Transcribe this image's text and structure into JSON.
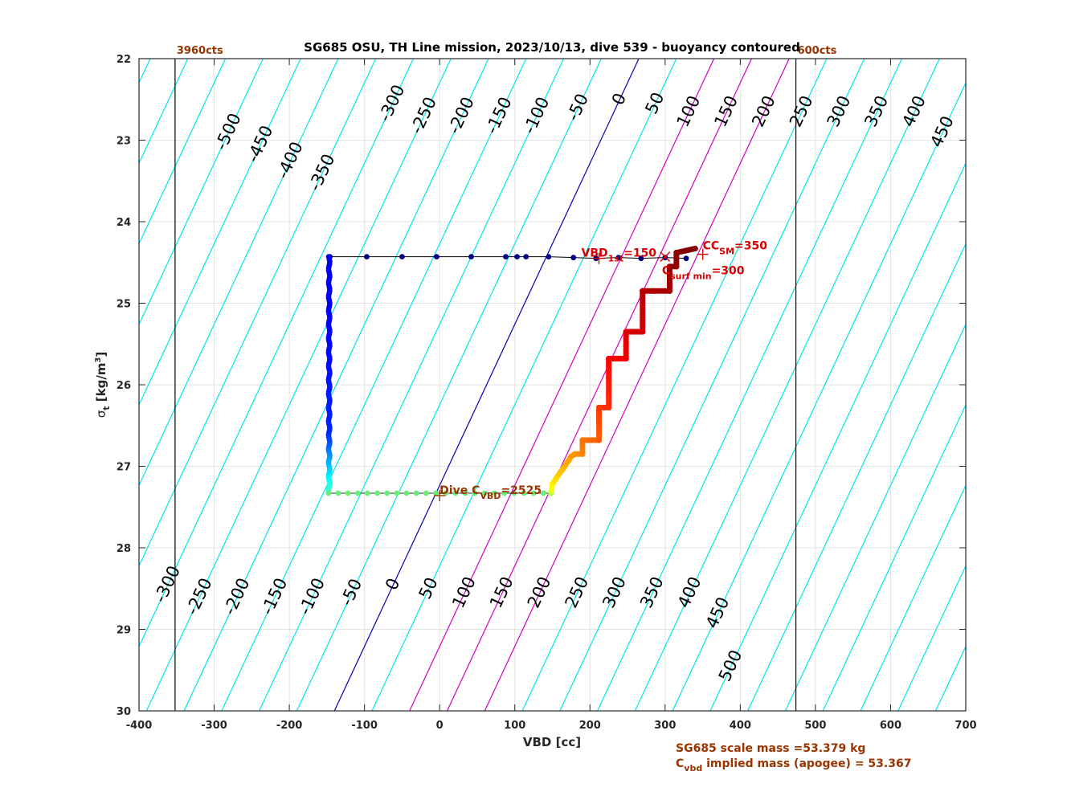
{
  "chart_data": {
    "type": "scatter",
    "title": "SG685 OSU, TH Line mission, 2023/10/13, dive 539 - buoyancy contoured",
    "xlabel": "VBD [cc]",
    "ylabel_main": "σ",
    "ylabel_sub": "t",
    "ylabel_rest": " [kg/m",
    "ylabel_sup": "3",
    "ylabel_end": "]",
    "xlim": [
      -400,
      700
    ],
    "ylim": [
      22,
      30
    ],
    "y_reversed": true,
    "grid": true,
    "x_ticks": [
      -400,
      -300,
      -200,
      -100,
      0,
      100,
      200,
      300,
      400,
      500,
      600,
      700
    ],
    "y_ticks": [
      22,
      23,
      24,
      25,
      26,
      27,
      28,
      29,
      30
    ],
    "x_tick_labels": [
      "-400",
      "-300",
      "-200",
      "-100",
      "0",
      "100",
      "200",
      "300",
      "400",
      "500",
      "600",
      "700"
    ],
    "y_tick_labels": [
      "22",
      "23",
      "24",
      "25",
      "26",
      "27",
      "28",
      "29",
      "30"
    ],
    "vbd_limits": [
      {
        "x": -352,
        "label": "3960cts"
      },
      {
        "x": 474,
        "label": "600cts"
      }
    ],
    "contours": {
      "x_at_sigma30_for_zero": -140,
      "x_at_sigma22_for_zero": 265,
      "cyan_levels": [
        -700,
        -650,
        -600,
        -550,
        -500,
        -450,
        -400,
        -350,
        -300,
        -250,
        -200,
        -150,
        -100,
        -50,
        50,
        250,
        300,
        350,
        400,
        450,
        500,
        550,
        600,
        650,
        700,
        750,
        800
      ],
      "zero_level": 0,
      "magenta_levels": [
        100,
        150,
        200
      ],
      "top_labels": [
        {
          "level": -500,
          "text": "-500",
          "sigma": 22.9
        },
        {
          "level": -450,
          "text": "-450",
          "sigma": 23.05
        },
        {
          "level": -400,
          "text": "-400",
          "sigma": 23.25
        },
        {
          "level": -350,
          "text": "-350",
          "sigma": 23.4
        },
        {
          "level": -300,
          "text": "-300",
          "sigma": 22.55
        },
        {
          "level": -250,
          "text": "-250",
          "sigma": 22.7
        },
        {
          "level": -200,
          "text": "-200",
          "sigma": 22.7
        },
        {
          "level": -150,
          "text": "-150",
          "sigma": 22.7
        },
        {
          "level": -100,
          "text": "-100",
          "sigma": 22.7
        },
        {
          "level": -50,
          "text": "-50",
          "sigma": 22.6
        },
        {
          "level": 0,
          "text": "0",
          "sigma": 22.5
        },
        {
          "level": 50,
          "text": "50",
          "sigma": 22.55
        },
        {
          "level": 100,
          "text": "100",
          "sigma": 22.65
        },
        {
          "level": 150,
          "text": "150",
          "sigma": 22.65
        },
        {
          "level": 200,
          "text": "200",
          "sigma": 22.65
        },
        {
          "level": 250,
          "text": "250",
          "sigma": 22.65
        },
        {
          "level": 300,
          "text": "300",
          "sigma": 22.65
        },
        {
          "level": 350,
          "text": "350",
          "sigma": 22.65
        },
        {
          "level": 400,
          "text": "400",
          "sigma": 22.65
        },
        {
          "level": 450,
          "text": "450",
          "sigma": 22.9
        }
      ],
      "bottom_labels": [
        {
          "level": -300,
          "text": "-300",
          "sigma": 28.45
        },
        {
          "level": -250,
          "text": "-250",
          "sigma": 28.6
        },
        {
          "level": -200,
          "text": "-200",
          "sigma": 28.6
        },
        {
          "level": -150,
          "text": "-150",
          "sigma": 28.6
        },
        {
          "level": -100,
          "text": "-100",
          "sigma": 28.6
        },
        {
          "level": -50,
          "text": "-50",
          "sigma": 28.55
        },
        {
          "level": 0,
          "text": "0",
          "sigma": 28.45
        },
        {
          "level": 50,
          "text": "50",
          "sigma": 28.5
        },
        {
          "level": 100,
          "text": "100",
          "sigma": 28.55
        },
        {
          "level": 150,
          "text": "150",
          "sigma": 28.55
        },
        {
          "level": 200,
          "text": "200",
          "sigma": 28.55
        },
        {
          "level": 250,
          "text": "250",
          "sigma": 28.55
        },
        {
          "level": 300,
          "text": "300",
          "sigma": 28.55
        },
        {
          "level": 350,
          "text": "350",
          "sigma": 28.55
        },
        {
          "level": 400,
          "text": "400",
          "sigma": 28.55
        },
        {
          "level": 450,
          "text": "450",
          "sigma": 28.8
        },
        {
          "level": 500,
          "text": "500",
          "sigma": 29.45
        }
      ]
    },
    "descent": {
      "color": "#000080",
      "surface_points": [
        {
          "x": 328,
          "y": 24.45
        },
        {
          "x": 300,
          "y": 24.44
        },
        {
          "x": 268,
          "y": 24.45
        },
        {
          "x": 238,
          "y": 24.44
        },
        {
          "x": 208,
          "y": 24.45
        },
        {
          "x": 178,
          "y": 24.44
        },
        {
          "x": 145,
          "y": 24.43
        },
        {
          "x": 115,
          "y": 24.43
        },
        {
          "x": 103,
          "y": 24.43
        },
        {
          "x": 88,
          "y": 24.43
        },
        {
          "x": 42,
          "y": 24.43
        },
        {
          "x": -4,
          "y": 24.43
        },
        {
          "x": -50,
          "y": 24.43
        },
        {
          "x": -97,
          "y": 24.43
        },
        {
          "x": -146,
          "y": 24.43
        }
      ],
      "column_x": -147,
      "column_sigma": [
        24.43,
        27.33
      ]
    },
    "bottom_path": {
      "color": "#66ee77",
      "x": [
        -148,
        -135,
        -122,
        -109,
        -96,
        -83,
        -70,
        -57,
        -44,
        -31,
        -18,
        -5,
        8,
        21,
        34,
        47,
        60,
        73,
        86,
        99,
        112,
        125,
        138,
        148
      ],
      "y": 27.33
    },
    "climb_path": [
      {
        "x": 148,
        "y": 27.33
      },
      {
        "x": 150,
        "y": 27.22
      },
      {
        "x": 155,
        "y": 27.15
      },
      {
        "x": 160,
        "y": 27.08
      },
      {
        "x": 165,
        "y": 27.02
      },
      {
        "x": 170,
        "y": 26.95
      },
      {
        "x": 175,
        "y": 26.88
      },
      {
        "x": 180,
        "y": 26.85
      },
      {
        "x": 190,
        "y": 26.85
      },
      {
        "x": 190,
        "y": 26.68
      },
      {
        "x": 212,
        "y": 26.68
      },
      {
        "x": 212,
        "y": 26.28
      },
      {
        "x": 225,
        "y": 26.28
      },
      {
        "x": 225,
        "y": 25.68
      },
      {
        "x": 248,
        "y": 25.68
      },
      {
        "x": 248,
        "y": 25.35
      },
      {
        "x": 270,
        "y": 25.35
      },
      {
        "x": 270,
        "y": 24.85
      },
      {
        "x": 306,
        "y": 24.85
      },
      {
        "x": 306,
        "y": 24.55
      },
      {
        "x": 315,
        "y": 24.55
      },
      {
        "x": 315,
        "y": 24.38
      },
      {
        "x": 340,
        "y": 24.33
      }
    ],
    "markers": [
      {
        "x": 212,
        "y": 24.45,
        "color": "#dd0000",
        "symbol": "+",
        "label_main": "VBD",
        "label_sub": "1st",
        "label_rest": "=150"
      },
      {
        "x": 350,
        "y": 24.4,
        "color": "#dd0000",
        "symbol": "+",
        "label_main": "CC",
        "label_sub": "SM",
        "label_rest": "=350"
      },
      {
        "x": 300,
        "y": 24.43,
        "color": "#dd0000",
        "symbol": "x",
        "label_main": "C",
        "label_sub": "surf min",
        "label_rest": "=300"
      },
      {
        "x": 0,
        "y": 27.36,
        "color": "#993300",
        "symbol": "+",
        "label_main": "Dive C",
        "label_sub": "VBD",
        "label_rest": "=2525"
      }
    ],
    "annotations": [
      {
        "text": "SG685 scale mass =53.379 kg",
        "color": "#993300"
      },
      {
        "text_main": "C",
        "text_sub": "vbd",
        "text_rest": " implied mass (apogee) = 53.367",
        "color": "#993300"
      }
    ]
  }
}
